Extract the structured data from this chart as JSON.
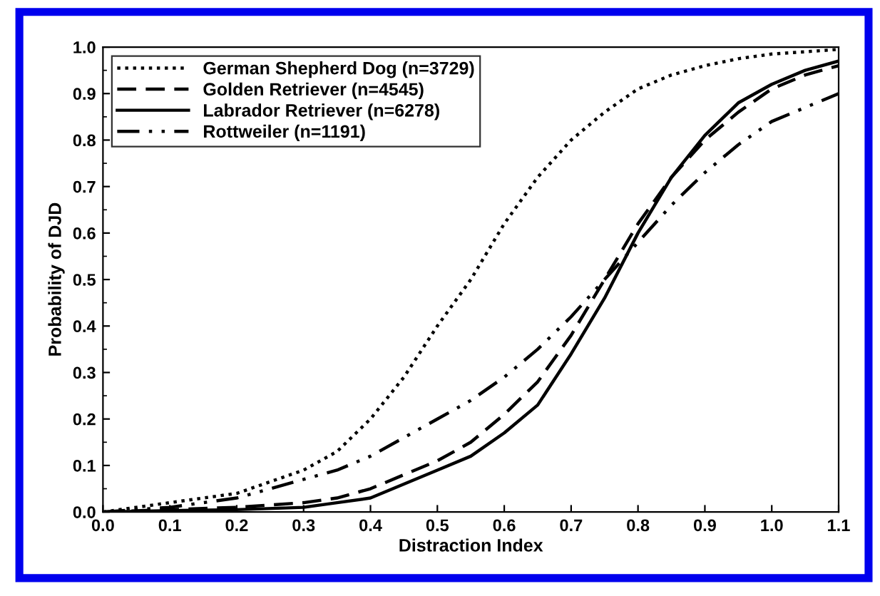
{
  "chart_data": {
    "type": "line",
    "xlabel": "Distraction Index",
    "ylabel": "Probability of DJD",
    "x": [
      0,
      0.1,
      0.2,
      0.3,
      0.35,
      0.4,
      0.45,
      0.5,
      0.55,
      0.6,
      0.65,
      0.7,
      0.75,
      0.8,
      0.85,
      0.9,
      0.95,
      1.0,
      1.05,
      1.1
    ],
    "series": [
      {
        "name": "German Shepherd Dog (n=3729)",
        "color": "#000000",
        "line_style": "dotted",
        "values": [
          0.0,
          0.02,
          0.04,
          0.09,
          0.13,
          0.2,
          0.29,
          0.4,
          0.5,
          0.62,
          0.72,
          0.8,
          0.86,
          0.91,
          0.94,
          0.96,
          0.975,
          0.985,
          0.99,
          0.995
        ]
      },
      {
        "name": "Golden Retriever (n=4545)",
        "color": "#000000",
        "line_style": "dashed",
        "values": [
          0.0,
          0.005,
          0.01,
          0.02,
          0.03,
          0.05,
          0.08,
          0.11,
          0.15,
          0.21,
          0.28,
          0.38,
          0.5,
          0.62,
          0.72,
          0.8,
          0.86,
          0.91,
          0.94,
          0.96
        ]
      },
      {
        "name": "Labrador Retriever (n=6278)",
        "color": "#000000",
        "line_style": "solid",
        "values": [
          0.0,
          0.003,
          0.005,
          0.01,
          0.02,
          0.03,
          0.06,
          0.09,
          0.12,
          0.17,
          0.23,
          0.34,
          0.46,
          0.6,
          0.72,
          0.81,
          0.88,
          0.92,
          0.95,
          0.97
        ]
      },
      {
        "name": "Rottweiler (n=1191)",
        "color": "#000000",
        "line_style": "dashdotdot",
        "values": [
          0.0,
          0.01,
          0.03,
          0.07,
          0.09,
          0.12,
          0.16,
          0.2,
          0.24,
          0.29,
          0.35,
          0.42,
          0.5,
          0.58,
          0.66,
          0.73,
          0.79,
          0.84,
          0.87,
          0.9
        ]
      }
    ],
    "xlim": [
      0,
      1.1
    ],
    "ylim": [
      0,
      1.0
    ],
    "xticks": [
      {
        "value": 0,
        "label": "0.0"
      },
      0.1,
      0.2,
      0.3,
      0.4,
      0.5,
      0.6,
      0.7,
      0.8,
      0.9,
      {
        "value": 1.0,
        "label": "1.0"
      },
      1.1
    ],
    "yticks": [
      {
        "value": 0,
        "label": "0.0"
      },
      0.1,
      0.2,
      0.3,
      0.4,
      0.5,
      0.6,
      0.7,
      0.8,
      0.9,
      {
        "value": 1.0,
        "label": "1.0"
      }
    ],
    "grid": false,
    "legend": "top left",
    "marker": "none"
  }
}
